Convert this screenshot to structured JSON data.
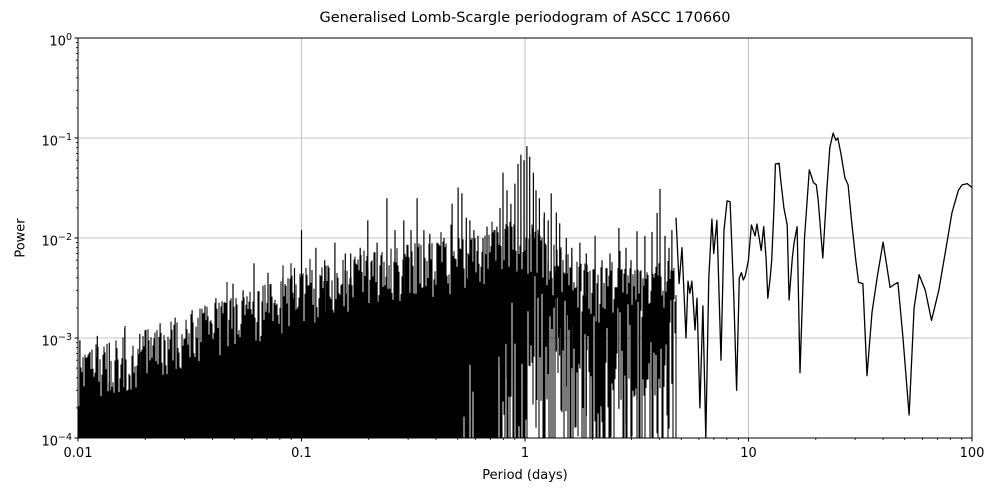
{
  "chart_data": {
    "type": "line",
    "title": "Generalised Lomb-Scargle periodogram of ASCC 170660",
    "xlabel": "Period (days)",
    "ylabel": "Power",
    "x_scale": "log",
    "y_scale": "log",
    "xlim": [
      0.01,
      100
    ],
    "ylim": [
      0.0001,
      1
    ],
    "x_ticks": {
      "values": [
        0.01,
        0.1,
        1,
        10,
        100
      ],
      "labels": [
        "0.01",
        "0.1",
        "1",
        "10",
        "100"
      ]
    },
    "y_ticks": {
      "values": [
        1,
        0.1,
        0.01,
        0.001,
        0.0001
      ],
      "mantissa": "10",
      "exponents": [
        "0",
        "−1",
        "−2",
        "−3",
        "−4"
      ]
    },
    "grid": {
      "show": true,
      "which": "major",
      "color": "#b0b0b0"
    },
    "line_color": "#000000",
    "background_color": "#ffffff",
    "dense_forest": {
      "solid_to_bottom_below_period": 0.42,
      "upper_envelope": [
        [
          0.01,
          0.0007
        ],
        [
          0.0126,
          0.00083
        ],
        [
          0.0158,
          0.001
        ],
        [
          0.02,
          0.0012
        ],
        [
          0.025,
          0.0015
        ],
        [
          0.0316,
          0.0018
        ],
        [
          0.04,
          0.0022
        ],
        [
          0.05,
          0.0026
        ],
        [
          0.063,
          0.0032
        ],
        [
          0.079,
          0.0038
        ],
        [
          0.1,
          0.0045
        ],
        [
          0.126,
          0.0052
        ],
        [
          0.158,
          0.0063
        ],
        [
          0.2,
          0.0071
        ],
        [
          0.251,
          0.0079
        ],
        [
          0.316,
          0.0089
        ],
        [
          0.398,
          0.0089
        ],
        [
          0.501,
          0.01
        ],
        [
          0.631,
          0.01
        ],
        [
          0.794,
          0.014
        ],
        [
          1.0,
          0.016
        ],
        [
          1.12,
          0.0126
        ],
        [
          1.26,
          0.01
        ],
        [
          1.58,
          0.0071
        ],
        [
          2.0,
          0.005
        ],
        [
          2.51,
          0.005
        ],
        [
          3.16,
          0.005
        ],
        [
          3.98,
          0.0056
        ],
        [
          4.7,
          0.005
        ]
      ],
      "notable_peaks": [
        [
          0.0102,
          0.00095
        ],
        [
          0.0122,
          0.00105
        ],
        [
          0.0138,
          0.0009
        ],
        [
          0.0162,
          0.00125
        ],
        [
          0.0189,
          0.0011
        ],
        [
          0.0233,
          0.0014
        ],
        [
          0.0272,
          0.0016
        ],
        [
          0.0324,
          0.0019
        ],
        [
          0.037,
          0.0021
        ],
        [
          0.0414,
          0.0025
        ],
        [
          0.0494,
          0.0035
        ],
        [
          0.0548,
          0.003
        ],
        [
          0.0613,
          0.0056
        ],
        [
          0.0708,
          0.0045
        ],
        [
          0.0826,
          0.004
        ],
        [
          0.093,
          0.005
        ],
        [
          0.1,
          0.012
        ],
        [
          0.116,
          0.008
        ],
        [
          0.127,
          0.006
        ],
        [
          0.141,
          0.009
        ],
        [
          0.157,
          0.007
        ],
        [
          0.166,
          0.007
        ],
        [
          0.183,
          0.008
        ],
        [
          0.198,
          0.015
        ],
        [
          0.218,
          0.009
        ],
        [
          0.241,
          0.025
        ],
        [
          0.262,
          0.012
        ],
        [
          0.287,
          0.015
        ],
        [
          0.309,
          0.012
        ],
        [
          0.329,
          0.025
        ],
        [
          0.353,
          0.012
        ],
        [
          0.375,
          0.011
        ],
        [
          0.404,
          0.009
        ],
        [
          0.434,
          0.01
        ],
        [
          0.472,
          0.022
        ],
        [
          0.502,
          0.032
        ],
        [
          0.522,
          0.028
        ],
        [
          0.546,
          0.016
        ],
        [
          0.567,
          0.015
        ],
        [
          0.591,
          0.012
        ],
        [
          0.616,
          0.0105
        ],
        [
          0.649,
          0.01
        ],
        [
          0.676,
          0.013
        ],
        [
          0.712,
          0.011
        ],
        [
          0.749,
          0.013
        ],
        [
          0.773,
          0.02
        ],
        [
          0.797,
          0.045
        ],
        [
          0.831,
          0.03
        ],
        [
          0.865,
          0.022
        ],
        [
          0.901,
          0.035
        ],
        [
          0.93,
          0.055
        ],
        [
          0.959,
          0.068
        ],
        [
          0.99,
          0.06
        ],
        [
          1.02,
          0.083
        ],
        [
          1.05,
          0.065
        ],
        [
          1.09,
          0.045
        ],
        [
          1.12,
          0.03
        ],
        [
          1.16,
          0.025
        ],
        [
          1.22,
          0.018
        ],
        [
          1.27,
          0.015
        ],
        [
          1.31,
          0.028
        ],
        [
          1.38,
          0.018
        ],
        [
          1.43,
          0.014
        ],
        [
          1.53,
          0.01
        ],
        [
          1.62,
          0.008
        ],
        [
          1.76,
          0.009
        ],
        [
          1.88,
          0.007
        ],
        [
          2.06,
          0.0105
        ],
        [
          2.21,
          0.006
        ],
        [
          2.4,
          0.007
        ],
        [
          2.63,
          0.0126
        ],
        [
          2.83,
          0.008
        ],
        [
          2.98,
          0.006
        ],
        [
          3.17,
          0.0117
        ],
        [
          3.44,
          0.0105
        ],
        [
          3.7,
          0.0115
        ],
        [
          3.9,
          0.0178
        ],
        [
          4.02,
          0.031
        ],
        [
          4.23,
          0.0105
        ],
        [
          4.41,
          0.008
        ],
        [
          4.54,
          0.012
        ]
      ]
    },
    "resolved_curve": [
      [
        4.74,
        0.016
      ],
      [
        4.89,
        0.0035
      ],
      [
        5.04,
        0.008
      ],
      [
        5.25,
        0.001
      ],
      [
        5.36,
        0.0037
      ],
      [
        5.47,
        0.0028
      ],
      [
        5.58,
        0.0037
      ],
      [
        5.76,
        0.0012
      ],
      [
        5.88,
        0.0025
      ],
      [
        6.06,
        0.0002
      ],
      [
        6.25,
        0.0021
      ],
      [
        6.44,
        0.0001
      ],
      [
        6.64,
        0.004
      ],
      [
        6.86,
        0.0155
      ],
      [
        6.99,
        0.007
      ],
      [
        7.22,
        0.015
      ],
      [
        7.53,
        0.0006
      ],
      [
        7.77,
        0.012
      ],
      [
        8.02,
        0.0235
      ],
      [
        8.27,
        0.023
      ],
      [
        8.59,
        0.0028
      ],
      [
        8.85,
        0.0003
      ],
      [
        9.1,
        0.004
      ],
      [
        9.29,
        0.0045
      ],
      [
        9.48,
        0.0038
      ],
      [
        9.68,
        0.0042
      ],
      [
        9.99,
        0.006
      ],
      [
        10.3,
        0.0135
      ],
      [
        10.7,
        0.0105
      ],
      [
        10.9,
        0.0138
      ],
      [
        11.4,
        0.0075
      ],
      [
        11.7,
        0.013
      ],
      [
        12.0,
        0.006
      ],
      [
        12.2,
        0.0025
      ],
      [
        12.5,
        0.004
      ],
      [
        12.7,
        0.006
      ],
      [
        13.0,
        0.02
      ],
      [
        13.2,
        0.055
      ],
      [
        13.7,
        0.056
      ],
      [
        13.9,
        0.04
      ],
      [
        14.4,
        0.02
      ],
      [
        14.9,
        0.0135
      ],
      [
        15.2,
        0.0024
      ],
      [
        15.7,
        0.0063
      ],
      [
        16.0,
        0.009
      ],
      [
        16.5,
        0.013
      ],
      [
        17.0,
        0.00045
      ],
      [
        17.8,
        0.01
      ],
      [
        18.7,
        0.048
      ],
      [
        19.1,
        0.042
      ],
      [
        19.5,
        0.036
      ],
      [
        20.1,
        0.034
      ],
      [
        20.5,
        0.024
      ],
      [
        21.5,
        0.0063
      ],
      [
        22.4,
        0.03
      ],
      [
        23.1,
        0.08
      ],
      [
        23.9,
        0.112
      ],
      [
        24.6,
        0.095
      ],
      [
        25.1,
        0.1
      ],
      [
        25.9,
        0.07
      ],
      [
        27.0,
        0.04
      ],
      [
        27.9,
        0.034
      ],
      [
        28.9,
        0.015
      ],
      [
        30.2,
        0.006
      ],
      [
        31.1,
        0.0036
      ],
      [
        32.5,
        0.0035
      ],
      [
        33.9,
        0.00042
      ],
      [
        35.7,
        0.0018
      ],
      [
        37.6,
        0.004
      ],
      [
        40.0,
        0.0091
      ],
      [
        43.0,
        0.0032
      ],
      [
        44.6,
        0.0034
      ],
      [
        46.6,
        0.0036
      ],
      [
        49.1,
        0.001
      ],
      [
        52.3,
        0.00017
      ],
      [
        55.1,
        0.002
      ],
      [
        58.0,
        0.0043
      ],
      [
        61.8,
        0.003
      ],
      [
        65.9,
        0.0015
      ],
      [
        71.0,
        0.003
      ],
      [
        76.6,
        0.008
      ],
      [
        81.4,
        0.018
      ],
      [
        86.9,
        0.03
      ],
      [
        90.3,
        0.034
      ],
      [
        95.2,
        0.035
      ],
      [
        100,
        0.032
      ]
    ],
    "render": {
      "noise_seed": 7,
      "forest_stroke": 1.05,
      "spike_stroke": 1.2,
      "curve_stroke": 1.3
    }
  }
}
